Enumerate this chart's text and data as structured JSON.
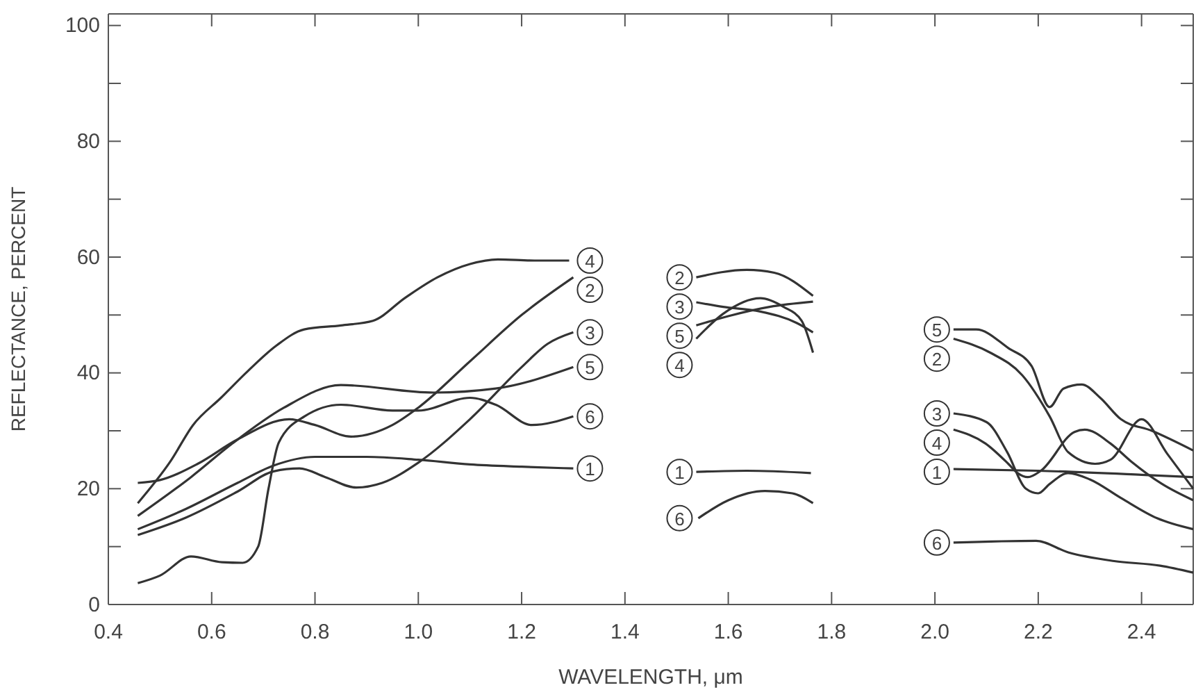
{
  "chart_data": {
    "type": "line",
    "xlabel": "WAVELENGTH, μm",
    "ylabel": "REFLECTANCE, PERCENT",
    "xlim": [
      0.4,
      2.5
    ],
    "ylim": [
      0,
      102
    ],
    "xticks": [
      {
        "value": 0.4,
        "label": "0.4"
      },
      {
        "value": 0.6,
        "label": "0.6"
      },
      {
        "value": 0.8,
        "label": "0.8"
      },
      {
        "value": 1.0,
        "label": "1.0"
      },
      {
        "value": 1.2,
        "label": "1.2"
      },
      {
        "value": 1.4,
        "label": "1.4"
      },
      {
        "value": 1.6,
        "label": "1.6"
      },
      {
        "value": 1.8,
        "label": "1.8"
      },
      {
        "value": 2.0,
        "label": "2.0"
      },
      {
        "value": 2.2,
        "label": "2.2"
      },
      {
        "value": 2.4,
        "label": "2.4"
      }
    ],
    "yticks": [
      0,
      {
        "value": 10,
        "label": null
      },
      20,
      {
        "value": 30,
        "label": null
      },
      40,
      {
        "value": 50,
        "label": null
      },
      60,
      {
        "value": 70,
        "label": null
      },
      80,
      {
        "value": 90,
        "label": null
      },
      100
    ],
    "grid": false,
    "legend": "center",
    "marker": "none",
    "line_style": "solid",
    "series": [
      {
        "name": "1",
        "color": "#333333",
        "x": [
          0.457,
          0.55,
          0.65,
          0.72,
          0.8,
          0.9,
          1.0,
          1.1,
          1.2,
          1.3,
          1.4,
          1.538,
          1.636,
          1.76,
          1.9,
          2.036,
          2.2,
          2.4,
          2.5
        ],
        "values": [
          13,
          16.5,
          21,
          24,
          25.5,
          25.5,
          25,
          24.2,
          23.8,
          23.5,
          null,
          22.9,
          23.1,
          22.7,
          null,
          23.4,
          23.1,
          22.4,
          22
        ]
      },
      {
        "name": "2",
        "color": "#333333",
        "x": [
          0.457,
          0.5,
          0.573,
          0.65,
          0.75,
          0.8,
          0.87,
          0.95,
          1.0,
          1.1,
          1.2,
          1.3,
          1.4,
          1.538,
          1.636,
          1.689,
          1.764,
          1.9,
          2.036,
          2.107,
          2.169,
          2.222,
          2.258,
          2.31,
          2.34,
          2.4,
          2.45,
          2.5
        ],
        "values": [
          21,
          21.5,
          24.3,
          28.5,
          32,
          31,
          29,
          31,
          34,
          42,
          50,
          56.5,
          null,
          56.5,
          57.8,
          57.3,
          53.3,
          null,
          45.9,
          43.5,
          39.6,
          32.5,
          26.3,
          24.3,
          25,
          32,
          26,
          20
        ]
      },
      {
        "name": "3",
        "color": "#333333",
        "x": [
          0.457,
          0.55,
          0.65,
          0.72,
          0.77,
          0.82,
          0.88,
          0.93,
          1.0,
          1.1,
          1.2,
          1.25,
          1.3,
          1.4,
          1.538,
          1.59,
          1.662,
          1.733,
          1.764,
          1.9,
          2.036,
          2.1,
          2.14,
          2.176,
          2.2,
          2.222,
          2.258,
          2.3,
          2.36,
          2.43,
          2.5
        ],
        "values": [
          12,
          15,
          19.5,
          23,
          23.5,
          22,
          20.2,
          21,
          24.5,
          32,
          41,
          45,
          47,
          null,
          52.2,
          51.4,
          50.6,
          48.6,
          47,
          null,
          33,
          31.5,
          26.3,
          20,
          19.2,
          20.8,
          22.7,
          21.6,
          18.4,
          14.9,
          13
        ]
      },
      {
        "name": "4",
        "color": "#333333",
        "x": [
          0.457,
          0.52,
          0.564,
          0.618,
          0.671,
          0.725,
          0.779,
          0.85,
          0.912,
          0.975,
          1.037,
          1.1,
          1.154,
          1.225,
          1.292,
          1.4,
          1.538,
          1.59,
          1.662,
          1.707,
          1.742,
          1.764,
          1.9,
          2.036,
          2.098,
          2.142,
          2.16,
          2.18,
          2.205,
          2.27,
          2.29,
          2.34,
          2.38,
          2.44,
          2.5
        ],
        "values": [
          17.5,
          24.7,
          31,
          35.7,
          40.4,
          44.7,
          47.5,
          48.2,
          49,
          53,
          56.5,
          58.8,
          59.6,
          59.4,
          59.4,
          null,
          45.9,
          50.2,
          52.9,
          51.4,
          49,
          43.5,
          null,
          30.2,
          27.8,
          24.3,
          22.7,
          22,
          23.1,
          29.8,
          30.2,
          27.8,
          24.7,
          20.8,
          18
        ]
      },
      {
        "name": "5",
        "color": "#333333",
        "x": [
          0.457,
          0.56,
          0.64,
          0.74,
          0.85,
          1.03,
          1.15,
          1.3,
          1.4,
          1.538,
          1.6,
          1.68,
          1.764,
          1.9,
          2.036,
          2.08,
          2.142,
          2.187,
          2.222,
          2.249,
          2.284,
          2.32,
          2.36,
          2.42,
          2.5
        ],
        "values": [
          15.3,
          22,
          27.8,
          34,
          37.9,
          36.6,
          37.3,
          41,
          null,
          48.2,
          49.8,
          51.4,
          52.3,
          null,
          47.5,
          47.5,
          44.3,
          41.2,
          34.1,
          37.3,
          38,
          35.7,
          32,
          30,
          26.6
        ]
      },
      {
        "name": "6",
        "color": "#333333",
        "x": [
          0.457,
          0.5,
          0.56,
          0.62,
          0.66,
          0.69,
          0.71,
          0.73,
          0.78,
          0.85,
          0.95,
          1.0,
          1.1,
          1.15,
          1.22,
          1.3,
          1.4,
          1.542,
          1.6,
          1.671,
          1.724,
          1.764,
          1.9,
          2.036,
          2.196,
          2.258,
          2.347,
          2.436,
          2.5
        ],
        "values": [
          3.7,
          5,
          8.3,
          7.3,
          7.2,
          10,
          20,
          28,
          32.5,
          34.5,
          33.5,
          33.5,
          35.7,
          34.5,
          31,
          32.5,
          null,
          14.9,
          18,
          19.6,
          19.2,
          17.5,
          null,
          10.7,
          11,
          9,
          7.5,
          6.7,
          5.5
        ]
      }
    ]
  }
}
